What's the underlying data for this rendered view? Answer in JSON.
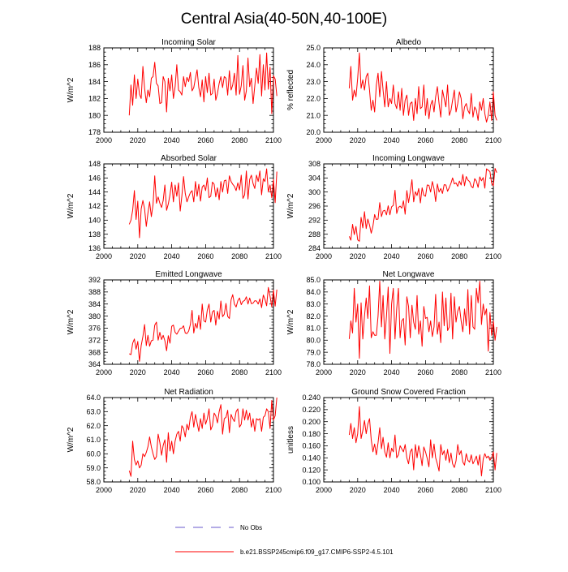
{
  "title": "Central Asia(40-50N,40-100E)",
  "legend": {
    "obs_label": "No Obs",
    "obs_color": "#6a5acd",
    "model_label": "b.e21.BSSP245cmip6.f09_g17.CMIP6-SSP2-4.5.101",
    "model_color": "#ff0000"
  },
  "chart_data": [
    {
      "type": "line",
      "title": "Incoming Solar",
      "ylabel": "W/m^2",
      "xlim": [
        2000,
        2100
      ],
      "ylim": [
        178,
        188
      ],
      "xticks": [
        "2000",
        "2020",
        "2040",
        "2060",
        "2080",
        "2100"
      ],
      "yticks": [
        "178",
        "180",
        "182",
        "184",
        "186",
        "188"
      ],
      "x_start": 2015,
      "series": [
        {
          "name": "b.e21.BSSP245cmip6.f09_g17.CMIP6-SSP2-4.5.101",
          "values": [
            180.0,
            183.6,
            181.2,
            184.8,
            182.0,
            184.3,
            182.5,
            182.0,
            185.8,
            183.2,
            181.5,
            183.0,
            182.2,
            184.4,
            184.6,
            186.3,
            183.8,
            183.5,
            181.4,
            181.5,
            184.6,
            184.0,
            180.4,
            184.4,
            182.9,
            184.8,
            182.0,
            183.4,
            186.0,
            183.0,
            182.8,
            182.4,
            184.6,
            183.4,
            184.5,
            184.0,
            185.1,
            182.9,
            183.3,
            184.4,
            185.4,
            183.3,
            182.2,
            184.2,
            181.6,
            184.6,
            182.7,
            185.0,
            182.4,
            182.6,
            184.3,
            181.8,
            182.6,
            183.8,
            184.6,
            183.3,
            184.6,
            184.4,
            182.4,
            185.3,
            183.0,
            183.6,
            185.0,
            182.4,
            187.1,
            182.5,
            183.5,
            185.9,
            181.8,
            182.9,
            186.8,
            183.4,
            184.4,
            181.4,
            183.5,
            185.6,
            183.8,
            187.2,
            182.3,
            186.0,
            183.0,
            187.4,
            183.1,
            185.7,
            180.2,
            184.7,
            184.3,
            182.3
          ]
        }
      ]
    },
    {
      "type": "line",
      "title": "Albedo",
      "ylabel": "% reflected",
      "xlim": [
        2000,
        2100
      ],
      "ylim": [
        20.0,
        25.0
      ],
      "xticks": [
        "2000",
        "2020",
        "2040",
        "2060",
        "2080",
        "2100"
      ],
      "yticks": [
        "20.0",
        "21.0",
        "22.0",
        "23.0",
        "24.0",
        "25.0"
      ],
      "x_start": 2015,
      "series": [
        {
          "name": "b.e21.BSSP245cmip6.f09_g17.CMIP6-SSP2-4.5.101",
          "values": [
            22.6,
            23.9,
            21.9,
            22.5,
            22.1,
            23.2,
            24.7,
            22.6,
            23.1,
            22.5,
            23.3,
            23.5,
            22.5,
            21.3,
            21.9,
            21.2,
            22.8,
            23.5,
            22.1,
            23.6,
            22.5,
            21.5,
            23.0,
            21.5,
            22.0,
            21.7,
            22.8,
            21.7,
            21.4,
            22.4,
            21.3,
            22.6,
            21.0,
            21.9,
            22.2,
            21.0,
            21.7,
            21.8,
            20.7,
            22.0,
            21.1,
            22.7,
            21.4,
            21.5,
            22.8,
            21.0,
            22.0,
            20.8,
            21.6,
            21.9,
            21.2,
            22.1,
            22.7,
            21.7,
            20.9,
            22.5,
            22.0,
            21.5,
            22.8,
            21.0,
            21.3,
            21.9,
            22.5,
            21.2,
            21.7,
            22.4,
            22.0,
            20.8,
            21.5,
            21.7,
            21.3,
            21.1,
            22.3,
            20.9,
            21.5,
            21.3,
            20.7,
            21.8,
            21.3,
            22.0,
            21.1,
            20.6,
            21.0,
            21.8,
            20.7,
            22.4,
            21.0,
            20.7
          ]
        }
      ]
    },
    {
      "type": "line",
      "title": "Absorbed Solar",
      "ylabel": "W/m^2",
      "xlim": [
        2000,
        2100
      ],
      "ylim": [
        136,
        148
      ],
      "xticks": [
        "2000",
        "2020",
        "2040",
        "2060",
        "2080",
        "2100"
      ],
      "yticks": [
        "136",
        "138",
        "140",
        "142",
        "144",
        "146",
        "148"
      ],
      "x_start": 2015,
      "series": [
        {
          "name": "b.e21.BSSP245cmip6.f09_g17.CMIP6-SSP2-4.5.101",
          "values": [
            139.4,
            140.0,
            141.4,
            144.2,
            140.1,
            142.7,
            137.5,
            141.6,
            142.8,
            141.6,
            139.1,
            141.0,
            142.6,
            140.5,
            142.2,
            146.3,
            142.4,
            143.3,
            142.4,
            141.8,
            142.8,
            145.0,
            141.4,
            142.3,
            143.6,
            145.4,
            142.6,
            145.0,
            143.4,
            145.3,
            141.3,
            143.4,
            146.2,
            143.8,
            142.6,
            143.3,
            143.9,
            144.2,
            142.6,
            145.5,
            143.4,
            145.1,
            142.7,
            144.7,
            145.0,
            144.2,
            146.0,
            143.2,
            143.4,
            145.4,
            145.1,
            143.3,
            144.6,
            142.9,
            145.5,
            144.0,
            145.6,
            145.7,
            143.8,
            146.3,
            145.5,
            145.1,
            144.8,
            144.2,
            145.3,
            144.3,
            146.4,
            143.1,
            143.6,
            147.0,
            143.0,
            145.8,
            146.4,
            145.2,
            144.5,
            146.4,
            145.5,
            147.0,
            143.6,
            145.9,
            145.5,
            147.3,
            144.0,
            145.0,
            143.2,
            145.8,
            142.5,
            146.9
          ]
        }
      ]
    },
    {
      "type": "line",
      "title": "Incoming Longwave",
      "ylabel": "W/m^2",
      "xlim": [
        2000,
        2100
      ],
      "ylim": [
        284,
        308
      ],
      "xticks": [
        "2000",
        "2020",
        "2040",
        "2060",
        "2080",
        "2100"
      ],
      "yticks": [
        "284",
        "288",
        "292",
        "296",
        "300",
        "304",
        "308"
      ],
      "x_start": 2015,
      "series": [
        {
          "name": "b.e21.BSSP245cmip6.f09_g17.CMIP6-SSP2-4.5.101",
          "values": [
            287.4,
            286.3,
            290.8,
            287.9,
            290.2,
            286.4,
            286.0,
            292.8,
            289.8,
            294.4,
            289.6,
            292.3,
            290.6,
            288.3,
            290.3,
            293.6,
            292.2,
            292.3,
            297.0,
            293.0,
            294.6,
            294.8,
            293.5,
            296.1,
            293.5,
            295.8,
            296.2,
            300.5,
            293.9,
            295.6,
            296.0,
            295.4,
            297.5,
            293.7,
            300.4,
            297.0,
            300.0,
            303.5,
            297.2,
            300.1,
            299.0,
            301.0,
            296.9,
            301.2,
            299.1,
            298.8,
            302.0,
            301.9,
            300.0,
            303.0,
            300.9,
            297.3,
            302.3,
            300.0,
            301.0,
            299.6,
            302.1,
            302.0,
            300.2,
            301.3,
            302.5,
            304.0,
            302.3,
            302.6,
            301.6,
            303.1,
            302.0,
            305.0,
            301.8,
            304.4,
            303.4,
            303.0,
            301.6,
            301.2,
            303.8,
            303.1,
            301.3,
            304.3,
            303.2,
            304.1,
            301.1,
            306.6,
            306.2,
            305.8,
            302.5,
            301.8,
            306.7,
            305.5
          ]
        }
      ]
    },
    {
      "type": "line",
      "title": "Emitted Longwave",
      "ylabel": "W/m^2",
      "xlim": [
        2000,
        2100
      ],
      "ylim": [
        364,
        392
      ],
      "xticks": [
        "2000",
        "2020",
        "2040",
        "2060",
        "2080",
        "2100"
      ],
      "yticks": [
        "364",
        "368",
        "372",
        "376",
        "380",
        "384",
        "388",
        "392"
      ],
      "x_start": 2015,
      "series": [
        {
          "name": "b.e21.BSSP245cmip6.f09_g17.CMIP6-SSP2-4.5.101",
          "values": [
            367.5,
            367.2,
            371.0,
            372.4,
            369.0,
            371.6,
            365.0,
            370.2,
            373.2,
            377.2,
            370.2,
            373.6,
            370.0,
            371.8,
            372.0,
            377.0,
            378.0,
            372.0,
            374.6,
            372.2,
            373.6,
            371.8,
            368.5,
            373.5,
            371.0,
            376.6,
            377.0,
            374.6,
            374.0,
            375.0,
            375.9,
            376.0,
            376.8,
            374.4,
            374.2,
            375.0,
            377.2,
            381.9,
            374.4,
            377.6,
            376.0,
            380.3,
            375.6,
            384.0,
            378.4,
            378.0,
            382.0,
            384.0,
            378.0,
            381.4,
            381.9,
            377.0,
            381.6,
            379.0,
            385.0,
            379.8,
            380.6,
            384.2,
            379.9,
            379.2,
            385.4,
            387.1,
            384.0,
            383.0,
            385.1,
            386.0,
            383.8,
            384.9,
            385.2,
            386.4,
            384.0,
            386.0,
            384.1,
            384.3,
            385.1,
            385.0,
            384.0,
            385.7,
            382.8,
            387.0,
            385.6,
            383.4,
            389.5,
            386.6,
            383.1,
            388.6,
            383.3,
            388.8
          ]
        }
      ]
    },
    {
      "type": "line",
      "title": "Net Longwave",
      "ylabel": "W/m^2",
      "xlim": [
        2000,
        2100
      ],
      "ylim": [
        78.0,
        85.0
      ],
      "xticks": [
        "2000",
        "2020",
        "2040",
        "2060",
        "2080",
        "2100"
      ],
      "yticks": [
        "78.0",
        "79.0",
        "80.0",
        "81.0",
        "82.0",
        "83.0",
        "84.0",
        "85.0"
      ],
      "x_start": 2015,
      "series": [
        {
          "name": "b.e21.BSSP245cmip6.f09_g17.CMIP6-SSP2-4.5.101",
          "values": [
            80.1,
            81.6,
            80.6,
            84.3,
            81.5,
            83.0,
            78.5,
            83.1,
            80.1,
            82.0,
            83.5,
            81.8,
            84.5,
            80.2,
            80.7,
            80.4,
            80.4,
            82.0,
            84.9,
            81.1,
            83.7,
            80.1,
            82.0,
            84.4,
            78.9,
            83.0,
            84.3,
            80.1,
            82.6,
            84.3,
            80.2,
            81.6,
            81.8,
            79.6,
            83.6,
            82.8,
            80.2,
            82.9,
            81.5,
            80.9,
            83.7,
            80.5,
            81.6,
            79.5,
            82.8,
            81.8,
            81.9,
            80.7,
            81.6,
            80.3,
            81.1,
            83.8,
            80.5,
            81.5,
            79.8,
            84.0,
            81.2,
            83.5,
            80.8,
            81.1,
            83.9,
            80.1,
            83.6,
            81.5,
            82.4,
            82.8,
            81.6,
            80.7,
            82.6,
            81.2,
            84.2,
            80.5,
            83.7,
            81.1,
            80.9,
            84.3,
            83.1,
            84.9,
            81.3,
            83.0,
            82.1,
            82.6,
            79.1,
            82.3,
            80.4,
            81.6,
            80.0,
            81.1
          ]
        }
      ]
    },
    {
      "type": "line",
      "title": "Net Radiation",
      "ylabel": "W/m^2",
      "xlim": [
        2000,
        2100
      ],
      "ylim": [
        58.0,
        64.0
      ],
      "xticks": [
        "2000",
        "2020",
        "2040",
        "2060",
        "2080",
        "2100"
      ],
      "yticks": [
        "58.0",
        "59.0",
        "60.0",
        "61.0",
        "62.0",
        "63.0",
        "64.0"
      ],
      "x_start": 2015,
      "series": [
        {
          "name": "b.e21.BSSP245cmip6.f09_g17.CMIP6-SSP2-4.5.101",
          "values": [
            58.8,
            58.4,
            60.9,
            59.6,
            59.2,
            59.5,
            59.0,
            59.2,
            60.0,
            59.8,
            60.1,
            60.5,
            61.2,
            60.5,
            60.0,
            59.6,
            59.8,
            61.4,
            60.8,
            59.9,
            60.6,
            61.0,
            59.4,
            61.5,
            60.2,
            60.9,
            60.0,
            60.9,
            61.4,
            61.6,
            60.9,
            62.0,
            61.8,
            61.2,
            62.1,
            61.7,
            62.6,
            63.0,
            61.9,
            62.8,
            62.2,
            61.6,
            62.5,
            61.8,
            62.9,
            62.1,
            62.5,
            63.2,
            61.7,
            62.0,
            62.9,
            62.7,
            62.2,
            63.0,
            63.5,
            61.4,
            62.5,
            62.6,
            63.1,
            61.5,
            62.8,
            62.5,
            62.3,
            63.0,
            63.2,
            61.9,
            62.1,
            63.2,
            62.4,
            63.1,
            62.4,
            62.9,
            61.9,
            62.5,
            61.6,
            62.5,
            62.4,
            62.5,
            61.6,
            62.6,
            62.7,
            63.2,
            63.0,
            61.8,
            63.8,
            62.4,
            62.7,
            64.0
          ]
        }
      ]
    },
    {
      "type": "line",
      "title": "Ground Snow Covered Fraction",
      "ylabel": "unitless",
      "xlim": [
        2000,
        2100
      ],
      "ylim": [
        0.1,
        0.24
      ],
      "xticks": [
        "2000",
        "2020",
        "2040",
        "2060",
        "2080",
        "2100"
      ],
      "yticks": [
        "0.100",
        "0.120",
        "0.140",
        "0.160",
        "0.180",
        "0.200",
        "0.220",
        "0.240"
      ],
      "x_start": 2015,
      "series": [
        {
          "name": "b.e21.BSSP245cmip6.f09_g17.CMIP6-SSP2-4.5.101",
          "values": [
            0.178,
            0.197,
            0.172,
            0.19,
            0.165,
            0.18,
            0.225,
            0.172,
            0.185,
            0.202,
            0.18,
            0.196,
            0.205,
            0.17,
            0.15,
            0.163,
            0.145,
            0.165,
            0.19,
            0.155,
            0.174,
            0.15,
            0.141,
            0.165,
            0.14,
            0.156,
            0.15,
            0.178,
            0.14,
            0.145,
            0.16,
            0.155,
            0.15,
            0.162,
            0.14,
            0.13,
            0.15,
            0.155,
            0.12,
            0.162,
            0.14,
            0.16,
            0.146,
            0.127,
            0.158,
            0.15,
            0.139,
            0.125,
            0.17,
            0.14,
            0.163,
            0.14,
            0.13,
            0.118,
            0.162,
            0.145,
            0.152,
            0.136,
            0.154,
            0.132,
            0.148,
            0.13,
            0.124,
            0.135,
            0.162,
            0.145,
            0.152,
            0.133,
            0.128,
            0.147,
            0.136,
            0.133,
            0.145,
            0.13,
            0.136,
            0.143,
            0.128,
            0.145,
            0.11,
            0.138,
            0.147,
            0.14,
            0.143,
            0.136,
            0.14,
            0.15,
            0.12,
            0.148
          ]
        }
      ]
    }
  ]
}
